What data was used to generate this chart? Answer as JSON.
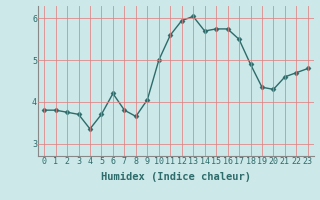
{
  "x": [
    0,
    1,
    2,
    3,
    4,
    5,
    6,
    7,
    8,
    9,
    10,
    11,
    12,
    13,
    14,
    15,
    16,
    17,
    18,
    19,
    20,
    21,
    22,
    23
  ],
  "y": [
    3.8,
    3.8,
    3.75,
    3.7,
    3.35,
    3.7,
    4.2,
    3.8,
    3.65,
    4.05,
    5.0,
    5.6,
    5.95,
    6.05,
    5.7,
    5.75,
    5.75,
    5.5,
    4.9,
    4.35,
    4.3,
    4.6,
    4.7,
    4.8
  ],
  "line_color": "#2e6b6b",
  "marker": "D",
  "marker_size": 2.5,
  "bg_color": "#cce8e8",
  "grid_color": "#e08080",
  "xlabel": "Humidex (Indice chaleur)",
  "ylabel": "",
  "xlim": [
    -0.5,
    23.5
  ],
  "ylim": [
    2.7,
    6.3
  ],
  "yticks": [
    3,
    4,
    5,
    6
  ],
  "xticks": [
    0,
    1,
    2,
    3,
    4,
    5,
    6,
    7,
    8,
    9,
    10,
    11,
    12,
    13,
    14,
    15,
    16,
    17,
    18,
    19,
    20,
    21,
    22,
    23
  ],
  "tick_fontsize": 6,
  "xlabel_fontsize": 7.5,
  "spine_color": "#888888",
  "axis_color": "#2e6b6b"
}
